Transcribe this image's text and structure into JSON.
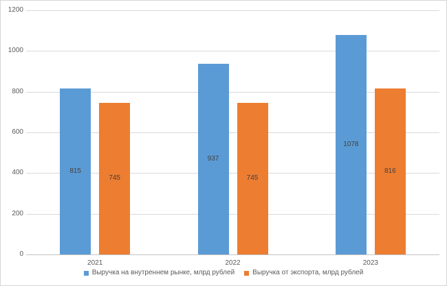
{
  "chart_data": {
    "type": "bar",
    "categories": [
      "2021",
      "2022",
      "2023"
    ],
    "series": [
      {
        "name": "Выручка на внутреннем рынке, млрд рублей",
        "color": "#5B9BD5",
        "values": [
          815,
          937,
          1078
        ]
      },
      {
        "name": "Выручка от экспорта, млрд рублей",
        "color": "#ED7D31",
        "values": [
          745,
          745,
          816
        ]
      }
    ],
    "title": "",
    "xlabel": "",
    "ylabel": "",
    "ylim": [
      0,
      1200
    ],
    "yticks": [
      0,
      200,
      400,
      600,
      800,
      1000,
      1200
    ],
    "grid": true,
    "data_labels": true,
    "data_label_position": "inside-center",
    "legend_position": "bottom"
  },
  "colors": {
    "grid": "#d9d9d9",
    "axis": "#c3c3c3",
    "tick_text": "#595959",
    "data_label_text": "#404040",
    "border": "#d6d6d6",
    "background": "#ffffff"
  }
}
